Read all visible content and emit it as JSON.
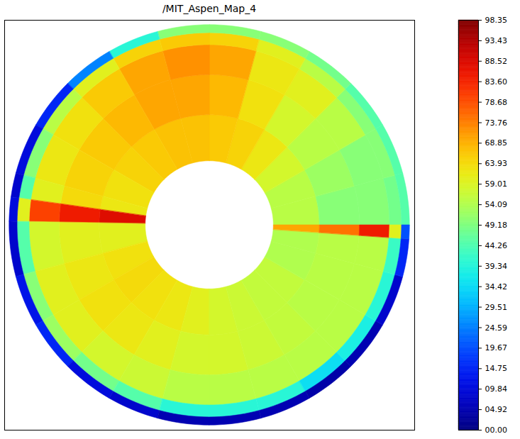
{
  "chart_data": {
    "type": "heatmap",
    "title": "/MIT_Aspen_Map_4",
    "tick_labels": false,
    "color": "jet",
    "angle_bins": [
      0,
      15,
      30,
      45,
      60,
      75,
      90,
      105,
      120,
      135,
      150,
      165,
      172,
      179,
      195,
      210,
      225,
      240,
      255,
      270,
      285,
      300,
      315,
      330,
      345,
      356,
      360
    ],
    "radius_bins": [
      0.32,
      0.55,
      0.75,
      0.9,
      0.96,
      1.0
    ],
    "values": [
      [
        55,
        50,
        50,
        48,
        45
      ],
      [
        55,
        52,
        50,
        50,
        45
      ],
      [
        58,
        55,
        55,
        50,
        45
      ],
      [
        62,
        58,
        60,
        55,
        48
      ],
      [
        65,
        63,
        62,
        60,
        50
      ],
      [
        66,
        68,
        70,
        65,
        50
      ],
      [
        67,
        70,
        72,
        66,
        50
      ],
      [
        67,
        70,
        70,
        65,
        40
      ],
      [
        66,
        68,
        66,
        60,
        25
      ],
      [
        65,
        66,
        63,
        55,
        15
      ],
      [
        63,
        65,
        62,
        50,
        10
      ],
      [
        62,
        64,
        60,
        45,
        8
      ],
      [
        88,
        85,
        80,
        60,
        10
      ],
      [
        60,
        60,
        58,
        45,
        8
      ],
      [
        63,
        62,
        60,
        50,
        12
      ],
      [
        64,
        63,
        60,
        52,
        15
      ],
      [
        63,
        62,
        58,
        48,
        10
      ],
      [
        62,
        60,
        57,
        45,
        8
      ],
      [
        60,
        58,
        55,
        40,
        5
      ],
      [
        58,
        58,
        55,
        40,
        5
      ],
      [
        57,
        57,
        55,
        40,
        5
      ],
      [
        56,
        56,
        55,
        35,
        4
      ],
      [
        56,
        55,
        55,
        38,
        5
      ],
      [
        54,
        55,
        55,
        40,
        8
      ],
      [
        54,
        55,
        55,
        42,
        15
      ],
      [
        70,
        75,
        85,
        60,
        20
      ]
    ],
    "colorbar": {
      "lim": [
        0,
        98.35
      ],
      "ticks": [
        {
          "value": 0,
          "label": "00.00"
        },
        {
          "value": 4.92,
          "label": "04.92"
        },
        {
          "value": 9.84,
          "label": "09.84"
        },
        {
          "value": 14.75,
          "label": "14.75"
        },
        {
          "value": 19.67,
          "label": "19.67"
        },
        {
          "value": 24.59,
          "label": "24.59"
        },
        {
          "value": 29.51,
          "label": "29.51"
        },
        {
          "value": 34.42,
          "label": "34.42"
        },
        {
          "value": 39.34,
          "label": "39.34"
        },
        {
          "value": 44.26,
          "label": "44.26"
        },
        {
          "value": 49.18,
          "label": "49.18"
        },
        {
          "value": 54.09,
          "label": "54.09"
        },
        {
          "value": 59.01,
          "label": "59.01"
        },
        {
          "value": 63.93,
          "label": "63.93"
        },
        {
          "value": 68.85,
          "label": "68.85"
        },
        {
          "value": 73.76,
          "label": "73.76"
        },
        {
          "value": 78.68,
          "label": "78.68"
        },
        {
          "value": 83.6,
          "label": "83.60"
        },
        {
          "value": 88.52,
          "label": "88.52"
        },
        {
          "value": 93.43,
          "label": "93.43"
        },
        {
          "value": 98.35,
          "label": "98.35"
        }
      ]
    }
  }
}
